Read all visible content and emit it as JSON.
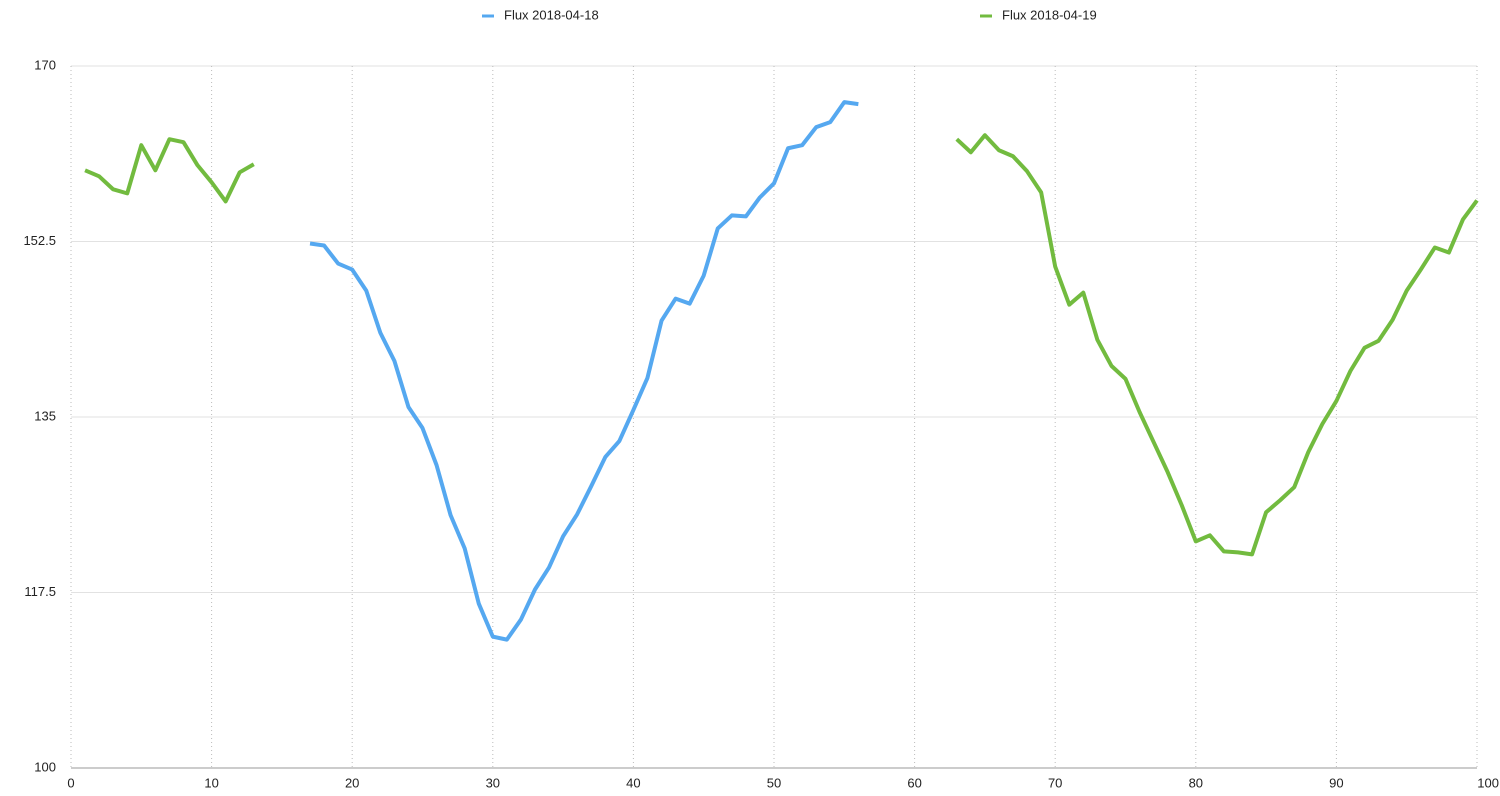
{
  "chart_data": {
    "type": "line",
    "x": [
      1,
      2,
      3,
      4,
      5,
      6,
      7,
      8,
      9,
      10,
      11,
      12,
      13,
      14,
      15,
      16,
      17,
      18,
      19,
      20,
      21,
      22,
      23,
      24,
      25,
      26,
      27,
      28,
      29,
      30,
      31,
      32,
      33,
      34,
      35,
      36,
      37,
      38,
      39,
      40,
      41,
      42,
      43,
      44,
      45,
      46,
      47,
      48,
      49,
      50,
      51,
      52,
      53,
      54,
      55,
      56,
      57,
      58,
      59,
      60,
      61,
      62,
      63,
      64,
      65,
      66,
      67,
      68,
      69,
      70,
      71,
      72,
      73,
      74,
      75,
      76,
      77,
      78,
      79,
      80,
      81,
      82,
      83,
      84,
      85,
      86,
      87,
      88,
      89,
      90,
      91,
      92,
      93,
      94,
      95,
      96,
      97,
      98,
      99,
      100
    ],
    "series": [
      {
        "name": "Flux 2018-04-18",
        "color": "#55a8f0",
        "values": [
          null,
          null,
          null,
          null,
          null,
          null,
          null,
          null,
          null,
          null,
          null,
          null,
          null,
          null,
          null,
          null,
          152.3,
          152.1,
          150.3,
          149.7,
          147.6,
          143.4,
          140.6,
          136.0,
          133.9,
          130.2,
          125.2,
          121.9,
          116.4,
          113.1,
          112.8,
          114.8,
          117.8,
          120.0,
          123.1,
          125.3,
          128.1,
          131.0,
          132.6,
          135.7,
          138.9,
          144.6,
          146.8,
          146.3,
          149.1,
          153.8,
          155.1,
          155.0,
          156.9,
          158.3,
          161.8,
          162.1,
          163.9,
          164.4,
          166.4,
          166.2,
          null,
          null,
          null,
          null,
          null,
          null,
          null,
          null,
          null,
          null,
          null,
          null,
          null,
          null,
          null,
          null,
          null,
          null,
          null,
          null,
          null,
          null,
          null,
          null,
          null,
          null,
          null,
          null,
          null,
          null,
          null,
          null,
          null,
          null,
          null,
          null,
          null,
          null,
          null,
          null,
          null,
          null,
          null,
          null
        ]
      },
      {
        "name": "Flux 2018-04-19",
        "color": "#72bb3f",
        "values": [
          159.6,
          159.0,
          157.7,
          157.3,
          162.1,
          159.6,
          162.7,
          162.4,
          160.1,
          158.4,
          156.5,
          159.4,
          160.2,
          null,
          null,
          null,
          null,
          null,
          null,
          null,
          null,
          null,
          null,
          null,
          null,
          null,
          null,
          null,
          null,
          null,
          null,
          null,
          null,
          null,
          null,
          null,
          null,
          null,
          null,
          null,
          null,
          null,
          null,
          null,
          null,
          null,
          null,
          null,
          null,
          null,
          null,
          null,
          null,
          null,
          null,
          null,
          null,
          null,
          null,
          null,
          null,
          null,
          162.7,
          161.4,
          163.1,
          161.6,
          161.0,
          159.5,
          157.4,
          150.0,
          146.2,
          147.4,
          142.7,
          140.1,
          138.8,
          135.5,
          132.5,
          129.5,
          126.2,
          122.6,
          123.2,
          121.6,
          121.5,
          121.3,
          125.5,
          126.7,
          128.0,
          131.5,
          134.3,
          136.6,
          139.6,
          141.9,
          142.6,
          144.7,
          147.6,
          149.7,
          151.9,
          151.4,
          154.7,
          156.6
        ]
      }
    ],
    "xlim": [
      0,
      100
    ],
    "xticks": [
      0,
      10,
      20,
      30,
      40,
      50,
      60,
      70,
      80,
      90,
      100
    ],
    "ylim": [
      100,
      170
    ],
    "yticks": [
      100,
      117.5,
      135,
      152.5,
      170
    ],
    "grid": true,
    "legend": "top"
  }
}
